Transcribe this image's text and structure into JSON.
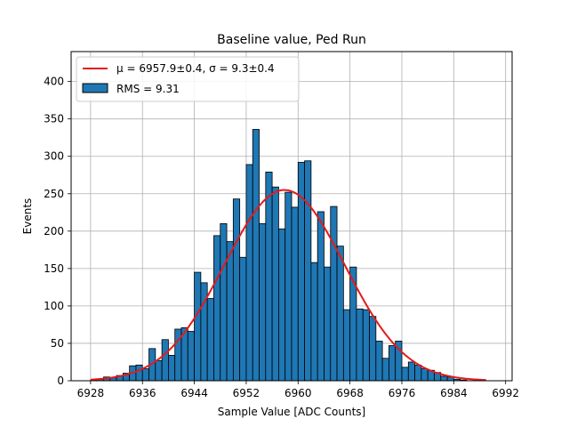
{
  "chart_data": {
    "type": "bar",
    "title": "Baseline value, Ped Run",
    "xlabel": "Sample Value [ADC Counts]",
    "ylabel": "Events",
    "xlim": [
      6925,
      6993
    ],
    "ylim": [
      0,
      440
    ],
    "xticks": [
      6928,
      6936,
      6944,
      6952,
      6960,
      6968,
      6976,
      6984,
      6992
    ],
    "yticks": [
      0,
      50,
      100,
      150,
      200,
      250,
      300,
      350,
      400
    ],
    "grid": true,
    "legend_position": "top-left",
    "histogram": {
      "bin_start": 6928,
      "bin_width": 1,
      "values": [
        1,
        2,
        5,
        4,
        7,
        10,
        20,
        21,
        16,
        43,
        27,
        55,
        34,
        69,
        71,
        66,
        145,
        131,
        110,
        194,
        210,
        186,
        243,
        165,
        289,
        336,
        210,
        279,
        259,
        203,
        252,
        232,
        292,
        294,
        158,
        226,
        152,
        233,
        180,
        95,
        152,
        96,
        95,
        86,
        53,
        30,
        47,
        53,
        18,
        25,
        21,
        16,
        14,
        11,
        6,
        5,
        2,
        1
      ]
    },
    "fit": {
      "mu": 6957.9,
      "sigma": 9.3,
      "amplitude": 255,
      "x_range": [
        6928,
        6989
      ]
    },
    "legend": {
      "fit_label": "μ = 6957.9±0.4, σ = 9.3±0.4",
      "hist_label": "RMS = 9.31"
    },
    "colors": {
      "bars": "#1f77b4",
      "bar_edge": "#000000",
      "fit_line": "#e41a1c",
      "grid": "#b0b0b0"
    }
  }
}
